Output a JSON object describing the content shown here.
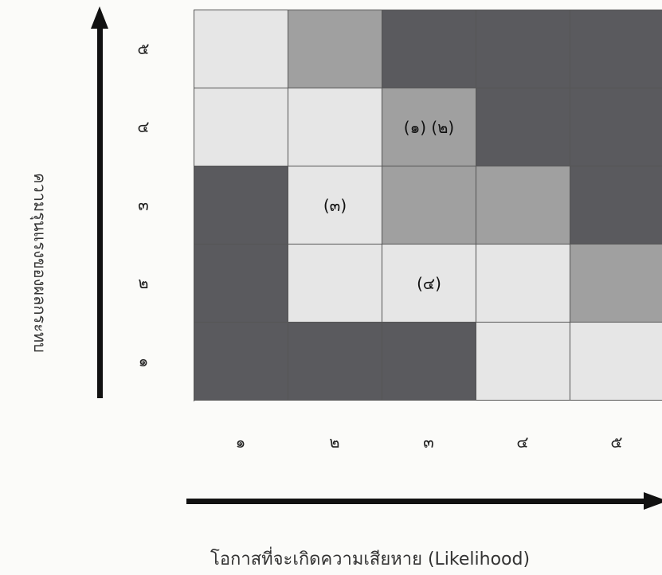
{
  "y_axis": {
    "label": "ความรุนแรงของผลกระทบ",
    "ticks": [
      "๕",
      "๔",
      "๓",
      "๒",
      "๑"
    ]
  },
  "x_axis": {
    "label": "โอกาสที่จะเกิดความเสียหาย (Likelihood)",
    "ticks": [
      "๑",
      "๒",
      "๓",
      "๔",
      "๕"
    ]
  },
  "palette": {
    "light": "#e6e6e6",
    "medium": "#a0a0a0",
    "dark": "#5a5a5e"
  },
  "matrix": [
    [
      {
        "level": "light",
        "text": ""
      },
      {
        "level": "medium",
        "text": ""
      },
      {
        "level": "dark",
        "text": ""
      },
      {
        "level": "dark",
        "text": ""
      },
      {
        "level": "dark",
        "text": ""
      }
    ],
    [
      {
        "level": "light",
        "text": ""
      },
      {
        "level": "light",
        "text": ""
      },
      {
        "level": "medium",
        "text": "(๑) (๒)"
      },
      {
        "level": "dark",
        "text": ""
      },
      {
        "level": "dark",
        "text": ""
      }
    ],
    [
      {
        "level": "dark",
        "text": ""
      },
      {
        "level": "light",
        "text": "(๓)"
      },
      {
        "level": "medium",
        "text": ""
      },
      {
        "level": "medium",
        "text": ""
      },
      {
        "level": "dark",
        "text": ""
      }
    ],
    [
      {
        "level": "dark",
        "text": ""
      },
      {
        "level": "light",
        "text": ""
      },
      {
        "level": "light",
        "text": "(๔)"
      },
      {
        "level": "light",
        "text": ""
      },
      {
        "level": "medium",
        "text": ""
      }
    ],
    [
      {
        "level": "dark",
        "text": ""
      },
      {
        "level": "dark",
        "text": ""
      },
      {
        "level": "dark",
        "text": ""
      },
      {
        "level": "light",
        "text": ""
      },
      {
        "level": "light",
        "text": ""
      }
    ]
  ]
}
